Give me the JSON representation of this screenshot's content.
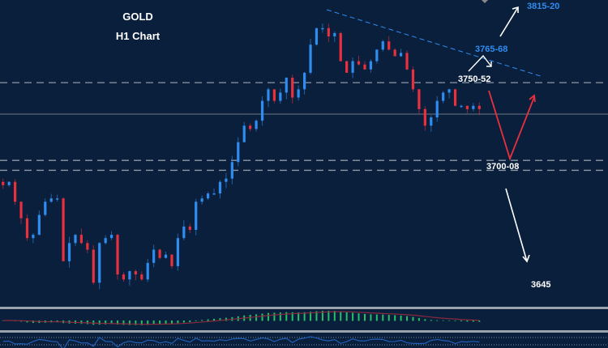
{
  "chart_data": {
    "type": "candlestick",
    "title": "GOLD",
    "subtitle": "H1 Chart",
    "ylim": [
      3614,
      3800
    ],
    "closes": [
      3688,
      3690,
      3678,
      3668,
      3656,
      3658,
      3670,
      3678,
      3680,
      3680,
      3642,
      3653,
      3658,
      3653,
      3649,
      3629,
      3653,
      3656,
      3658,
      3634,
      3631,
      3636,
      3634,
      3631,
      3641,
      3649,
      3644,
      3646,
      3639,
      3656,
      3663,
      3661,
      3678,
      3680,
      3683,
      3683,
      3690,
      3692,
      3702,
      3714,
      3724,
      3722,
      3727,
      3739,
      3746,
      3739,
      3744,
      3753,
      3741,
      3746,
      3756,
      3773,
      3783,
      3783,
      3778,
      3780,
      3763,
      3756,
      3763,
      3761,
      3758,
      3763,
      3770,
      3775,
      3770,
      3766,
      3768,
      3758,
      3746,
      3734,
      3724,
      3729,
      3739,
      3744,
      3746,
      3736,
      3736,
      3734,
      3736,
      3734
    ],
    "current_price": 3731,
    "levels": [
      3750,
      3703,
      3697
    ],
    "trendline": [
      [
        3794,
        0
      ],
      [
        3754,
        1
      ]
    ],
    "annotations": {
      "target_high": "3815-20",
      "trendline_level": "3765-68",
      "resistance": "3750-52",
      "support": "3700-08",
      "target_low": "3645"
    },
    "colors": {
      "up": "#2f8cf0",
      "down": "#e8303f",
      "hist": "#23c06a",
      "signal": "#8a2a3c",
      "trend": "#2f8cf0"
    }
  }
}
